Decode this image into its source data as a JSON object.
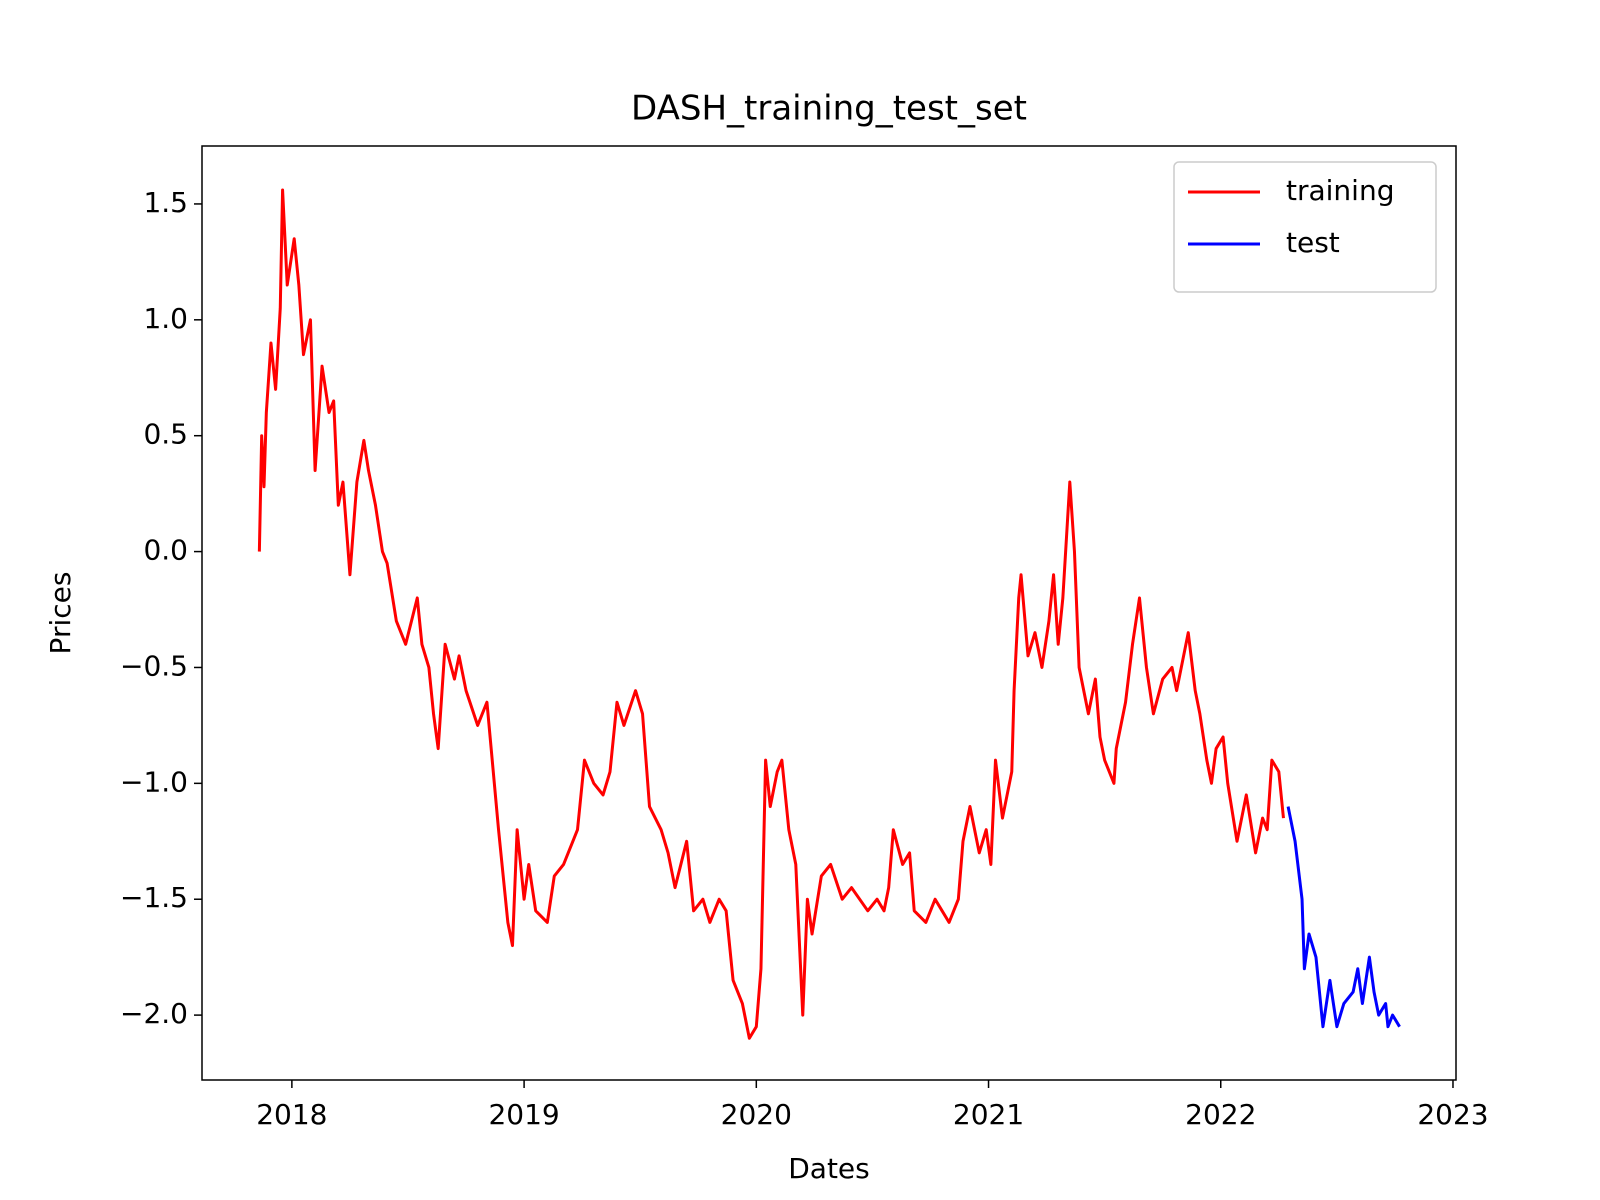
{
  "chart_data": {
    "type": "line",
    "title": "DASH_training_test_set",
    "xlabel": "Dates",
    "ylabel": "Prices",
    "xlim": [
      2017.613,
      2023.013
    ],
    "xticks": [
      2018,
      2019,
      2020,
      2021,
      2022,
      2023
    ],
    "ylim": [
      -2.28,
      1.75
    ],
    "yticks": [
      {
        "value": -2.0,
        "label": "−2.0"
      },
      {
        "value": -1.5,
        "label": "−1.5"
      },
      {
        "value": -1.0,
        "label": "−1.0"
      },
      {
        "value": -0.5,
        "label": "−0.5"
      },
      {
        "value": 0,
        "label": "0.0"
      },
      0.5,
      {
        "value": 1,
        "label": "1.0"
      },
      1.5
    ],
    "grid": false,
    "legend": "upper right",
    "series": [
      {
        "name": "training",
        "color": "#ff0000",
        "x": [
          2017.86,
          2017.87,
          2017.88,
          2017.89,
          2017.91,
          2017.93,
          2017.95,
          2017.96,
          2017.98,
          2018.01,
          2018.03,
          2018.05,
          2018.08,
          2018.1,
          2018.13,
          2018.16,
          2018.18,
          2018.2,
          2018.22,
          2018.25,
          2018.28,
          2018.31,
          2018.33,
          2018.36,
          2018.39,
          2018.41,
          2018.45,
          2018.49,
          2018.52,
          2018.54,
          2018.56,
          2018.59,
          2018.61,
          2018.63,
          2018.66,
          2018.7,
          2018.72,
          2018.75,
          2018.8,
          2018.84,
          2018.89,
          2018.93,
          2018.95,
          2018.97,
          2019.0,
          2019.02,
          2019.05,
          2019.1,
          2019.13,
          2019.17,
          2019.21,
          2019.23,
          2019.26,
          2019.3,
          2019.34,
          2019.37,
          2019.4,
          2019.43,
          2019.48,
          2019.51,
          2019.54,
          2019.59,
          2019.62,
          2019.65,
          2019.7,
          2019.73,
          2019.77,
          2019.8,
          2019.84,
          2019.87,
          2019.9,
          2019.94,
          2019.97,
          2020.0,
          2020.02,
          2020.04,
          2020.06,
          2020.09,
          2020.11,
          2020.14,
          2020.17,
          2020.2,
          2020.22,
          2020.24,
          2020.28,
          2020.32,
          2020.37,
          2020.41,
          2020.48,
          2020.52,
          2020.55,
          2020.57,
          2020.59,
          2020.63,
          2020.66,
          2020.68,
          2020.73,
          2020.77,
          2020.8,
          2020.83,
          2020.87,
          2020.89,
          2020.92,
          2020.96,
          2020.99,
          2021.01,
          2021.03,
          2021.06,
          2021.1,
          2021.11,
          2021.13,
          2021.14,
          2021.17,
          2021.2,
          2021.23,
          2021.26,
          2021.28,
          2021.3,
          2021.32,
          2021.35,
          2021.37,
          2021.39,
          2021.43,
          2021.46,
          2021.48,
          2021.5,
          2021.54,
          2021.55,
          2021.59,
          2021.62,
          2021.65,
          2021.68,
          2021.71,
          2021.75,
          2021.79,
          2021.81,
          2021.86,
          2021.89,
          2021.91,
          2021.94,
          2021.96,
          2021.98,
          2022.01,
          2022.03,
          2022.07,
          2022.09,
          2022.11,
          2022.15,
          2022.18,
          2022.2,
          2022.22,
          2022.25,
          2022.27
        ],
        "values": [
          0.0,
          0.5,
          0.28,
          0.6,
          0.9,
          0.7,
          1.05,
          1.56,
          1.15,
          1.35,
          1.15,
          0.85,
          1.0,
          0.35,
          0.8,
          0.6,
          0.65,
          0.2,
          0.3,
          -0.1,
          0.3,
          0.48,
          0.35,
          0.2,
          0.0,
          -0.05,
          -0.3,
          -0.4,
          -0.28,
          -0.2,
          -0.4,
          -0.5,
          -0.7,
          -0.85,
          -0.4,
          -0.55,
          -0.45,
          -0.6,
          -0.75,
          -0.65,
          -1.2,
          -1.6,
          -1.7,
          -1.2,
          -1.5,
          -1.35,
          -1.55,
          -1.6,
          -1.4,
          -1.35,
          -1.25,
          -1.2,
          -0.9,
          -1.0,
          -1.05,
          -0.95,
          -0.65,
          -0.75,
          -0.6,
          -0.7,
          -1.1,
          -1.2,
          -1.3,
          -1.45,
          -1.25,
          -1.55,
          -1.5,
          -1.6,
          -1.5,
          -1.55,
          -1.85,
          -1.95,
          -2.1,
          -2.05,
          -1.8,
          -0.9,
          -1.1,
          -0.95,
          -0.9,
          -1.2,
          -1.35,
          -2.0,
          -1.5,
          -1.65,
          -1.4,
          -1.35,
          -1.5,
          -1.45,
          -1.55,
          -1.5,
          -1.55,
          -1.45,
          -1.2,
          -1.35,
          -1.3,
          -1.55,
          -1.6,
          -1.5,
          -1.55,
          -1.6,
          -1.5,
          -1.25,
          -1.1,
          -1.3,
          -1.2,
          -1.35,
          -0.9,
          -1.15,
          -0.95,
          -0.6,
          -0.2,
          -0.1,
          -0.45,
          -0.35,
          -0.5,
          -0.3,
          -0.1,
          -0.4,
          -0.2,
          0.3,
          0.0,
          -0.5,
          -0.7,
          -0.55,
          -0.8,
          -0.9,
          -1.0,
          -0.85,
          -0.65,
          -0.4,
          -0.2,
          -0.5,
          -0.7,
          -0.55,
          -0.5,
          -0.6,
          -0.35,
          -0.6,
          -0.7,
          -0.9,
          -1.0,
          -0.85,
          -0.8,
          -1.0,
          -1.25,
          -1.15,
          -1.05,
          -1.3,
          -1.15,
          -1.2,
          -0.9,
          -0.95,
          -1.15
        ]
      },
      {
        "name": "test",
        "color": "#0000ff",
        "x": [
          2022.29,
          2022.32,
          2022.35,
          2022.36,
          2022.38,
          2022.41,
          2022.44,
          2022.47,
          2022.5,
          2022.53,
          2022.57,
          2022.59,
          2022.61,
          2022.64,
          2022.66,
          2022.68,
          2022.71,
          2022.72,
          2022.74,
          2022.77
        ],
        "values": [
          -1.1,
          -1.25,
          -1.5,
          -1.8,
          -1.65,
          -1.75,
          -2.05,
          -1.85,
          -2.05,
          -1.95,
          -1.9,
          -1.8,
          -1.95,
          -1.75,
          -1.9,
          -2.0,
          -1.95,
          -2.05,
          -2.0,
          -2.05
        ]
      }
    ]
  }
}
